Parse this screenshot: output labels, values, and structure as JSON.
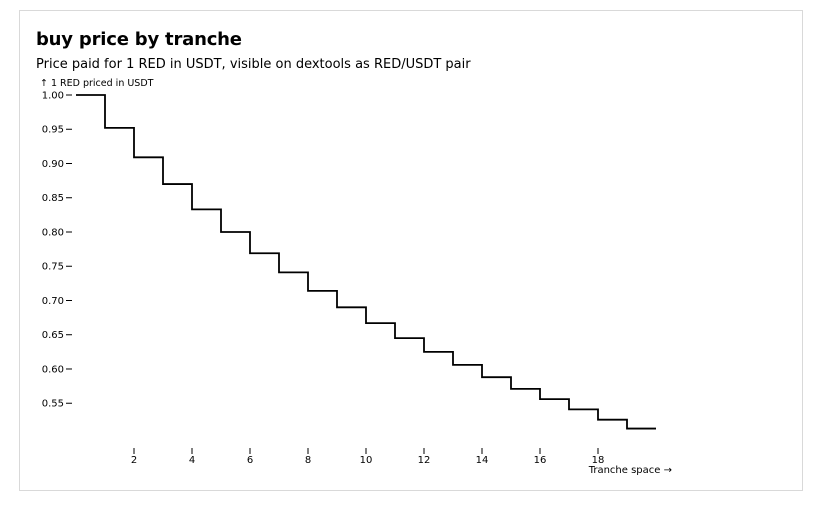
{
  "chart_data": {
    "type": "line",
    "step": "after",
    "title": "buy price by tranche",
    "subtitle": "Price paid for 1 RED in USDT, visible on dextools as RED/USDT pair",
    "ylabel": "↑ 1 RED priced in USDT",
    "xlabel": "Tranche space →",
    "xlim": [
      0,
      20
    ],
    "ylim": [
      0.508,
      1.0
    ],
    "x_ticks": [
      2,
      4,
      6,
      8,
      10,
      12,
      14,
      16,
      18
    ],
    "x_tick_labels": [
      "2",
      "4",
      "6",
      "8",
      "10",
      "12",
      "14",
      "16",
      "18"
    ],
    "y_ticks": [
      1.0,
      0.95,
      0.9,
      0.85,
      0.8,
      0.75,
      0.7,
      0.65,
      0.6,
      0.55
    ],
    "y_tick_labels": [
      "1.00",
      "0.95",
      "0.90",
      "0.85",
      "0.80",
      "0.75",
      "0.70",
      "0.65",
      "0.60",
      "0.55"
    ],
    "grid": false,
    "series": [
      {
        "x": [
          0,
          1,
          2,
          3,
          4,
          5,
          6,
          7,
          8,
          9,
          10,
          11,
          12,
          13,
          14,
          15,
          16,
          17,
          18,
          19,
          20
        ],
        "values": [
          1.0,
          0.952,
          0.909,
          0.87,
          0.833,
          0.8,
          0.769,
          0.741,
          0.714,
          0.69,
          0.667,
          0.645,
          0.625,
          0.606,
          0.588,
          0.571,
          0.556,
          0.541,
          0.526,
          0.513,
          0.513
        ]
      }
    ]
  }
}
